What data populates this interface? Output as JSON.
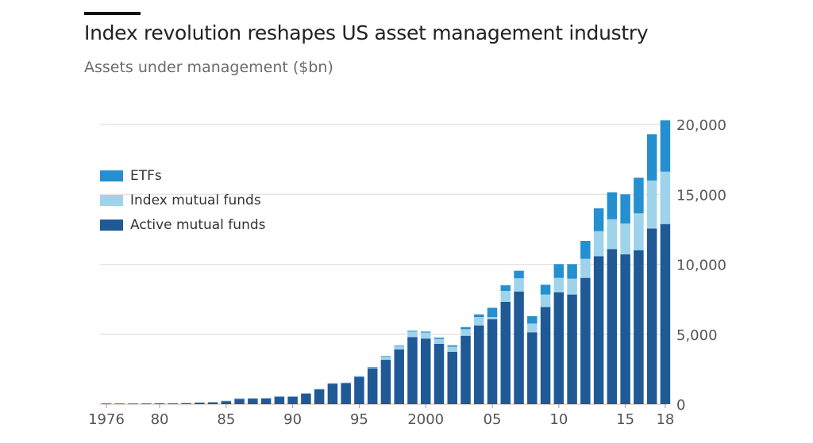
{
  "title": "Index revolution reshapes US asset management industry",
  "subtitle": "Assets under management ($bn)",
  "chart_data": {
    "type": "bar",
    "stacked": true,
    "x": [
      1976,
      1977,
      1978,
      1979,
      1980,
      1981,
      1982,
      1983,
      1984,
      1985,
      1986,
      1987,
      1988,
      1989,
      1990,
      1991,
      1992,
      1993,
      1994,
      1995,
      1996,
      1997,
      1998,
      1999,
      2000,
      2001,
      2002,
      2003,
      2004,
      2005,
      2006,
      2007,
      2008,
      2009,
      2010,
      2011,
      2012,
      2013,
      2014,
      2015,
      2016,
      2017,
      2018
    ],
    "xtick_labels": [
      {
        "year": 1976,
        "label": "1976"
      },
      {
        "year": 1980,
        "label": "80"
      },
      {
        "year": 1985,
        "label": "85"
      },
      {
        "year": 1990,
        "label": "90"
      },
      {
        "year": 1995,
        "label": "95"
      },
      {
        "year": 2000,
        "label": "2000"
      },
      {
        "year": 2005,
        "label": "05"
      },
      {
        "year": 2010,
        "label": "10"
      },
      {
        "year": 2015,
        "label": "15"
      },
      {
        "year": 2018,
        "label": "18"
      }
    ],
    "yticks": [
      0,
      5000,
      10000,
      15000,
      20000
    ],
    "ytick_labels": [
      "0",
      "5,000",
      "10,000",
      "15,000",
      "20,000"
    ],
    "ylim": [
      0,
      20000
    ],
    "grid": "horizontal",
    "legend_position": "top-left",
    "series": [
      {
        "name": "Active mutual funds",
        "color": "#1f5a96",
        "values": [
          48,
          45,
          45,
          50,
          58,
          55,
          76,
          110,
          135,
          250,
          410,
          430,
          440,
          560,
          560,
          770,
          1070,
          1470,
          1510,
          1940,
          2560,
          3170,
          3910,
          4800,
          4690,
          4310,
          3740,
          4890,
          5630,
          6080,
          7310,
          8050,
          5140,
          6950,
          7990,
          7840,
          9030,
          10580,
          11090,
          10710,
          11010,
          12560,
          12880
        ]
      },
      {
        "name": "Index mutual funds",
        "color": "#9fd3eb",
        "values": [
          0,
          0,
          0,
          0,
          0,
          0,
          0,
          0,
          0,
          2,
          4,
          5,
          5,
          10,
          10,
          20,
          30,
          40,
          40,
          60,
          90,
          260,
          270,
          390,
          430,
          360,
          370,
          470,
          600,
          150,
          790,
          950,
          620,
          890,
          1040,
          1130,
          1360,
          1790,
          2130,
          2210,
          2630,
          3430,
          3740
        ]
      },
      {
        "name": "ETFs",
        "color": "#2490d0",
        "values": [
          0,
          0,
          0,
          0,
          0,
          0,
          0,
          0,
          0,
          0,
          0,
          0,
          0,
          0,
          0,
          0,
          0,
          0,
          0,
          1,
          2,
          7,
          20,
          60,
          70,
          90,
          100,
          150,
          190,
          660,
          400,
          540,
          530,
          700,
          980,
          1040,
          1280,
          1640,
          1930,
          2080,
          2550,
          3310,
          3680
        ]
      }
    ],
    "legend_order": [
      "ETFs",
      "Index mutual funds",
      "Active mutual funds"
    ],
    "gridline_color": "#e9dedb"
  }
}
